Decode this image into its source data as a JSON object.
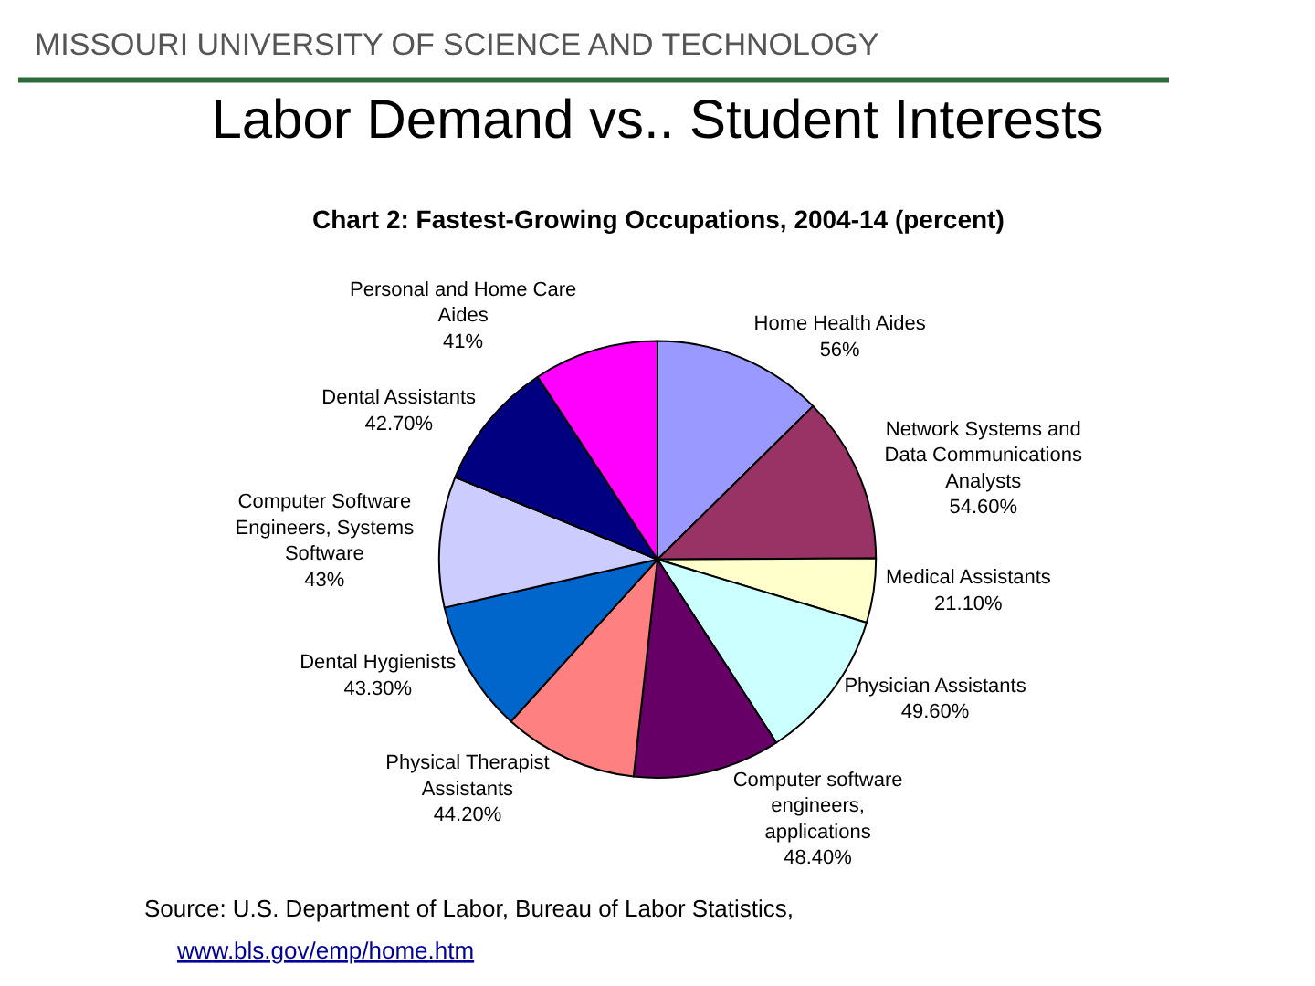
{
  "chart_data": {
    "type": "pie",
    "title": "Labor Demand vs.. Student Interests",
    "subtitle": "Chart 2: Fastest-Growing Occupations, 2004-14 (percent)",
    "categories": [
      "Home Health Aides",
      "Network Systems and Data Communications Analysts",
      "Medical Assistants",
      "Physician Assistants",
      "Computer software engineers, applications",
      "Physical Therapist Assistants",
      "Dental Hygienists",
      "Computer Software Engineers, Systems Software",
      "Dental Assistants",
      "Personal and Home Care Aides"
    ],
    "values": [
      56,
      54.6,
      21.1,
      49.6,
      48.4,
      44.2,
      43.3,
      43,
      42.7,
      41
    ],
    "value_labels": [
      "56%",
      "54.60%",
      "21.10%",
      "49.60%",
      "48.40%",
      "44.20%",
      "43.30%",
      "43%",
      "42.70%",
      "41%"
    ],
    "colors": [
      "#9999ff",
      "#993366",
      "#ffffcc",
      "#ccffff",
      "#660066",
      "#ff8080",
      "#0066cc",
      "#ccccff",
      "#000080",
      "#ff00ff"
    ],
    "annotations": [
      "MISSOURI UNIVERSITY OF SCIENCE AND TECHNOLOGY",
      "Source: U.S. Department of Labor, Bureau of Labor Statistics,",
      "www.bls.gov/emp/home.htm"
    ],
    "legend": false
  }
}
